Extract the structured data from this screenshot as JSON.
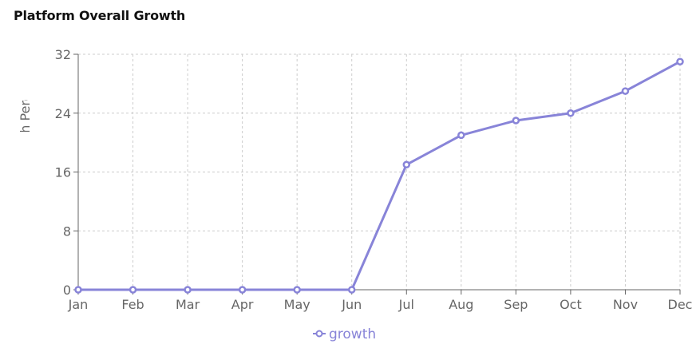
{
  "card": {
    "title": "Platform Overall Growth"
  },
  "colors": {
    "series": "#8884d8",
    "grid": "#cccccc",
    "axis": "#666666"
  },
  "chart_data": {
    "type": "line",
    "title": "Platform Overall Growth",
    "xlabel": "",
    "ylabel": "Growth Percentage",
    "categories": [
      "Jan",
      "Feb",
      "Mar",
      "Apr",
      "May",
      "Jun",
      "Jul",
      "Aug",
      "Sep",
      "Oct",
      "Nov",
      "Dec"
    ],
    "series": [
      {
        "name": "growth",
        "values": [
          0,
          0,
          0,
          0,
          0,
          0,
          17,
          21,
          23,
          24,
          27,
          31
        ]
      }
    ],
    "ylim": [
      0,
      32
    ],
    "yticks": [
      "0",
      "8",
      "16",
      "24",
      "32"
    ],
    "grid": true,
    "legend_position": "bottom"
  }
}
